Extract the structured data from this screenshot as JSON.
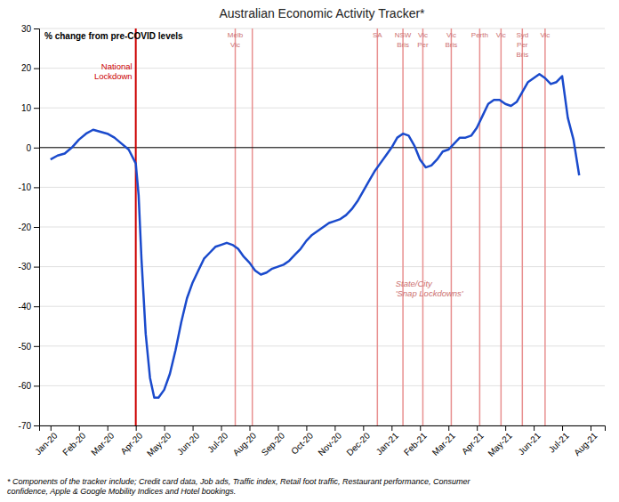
{
  "chart_data": {
    "type": "line",
    "title": "Australian Economic Activity Tracker*",
    "ylabel": "% change from pre-COVID levels",
    "footnote": "* Components of the tracker include; Credit card data, Job ads, Traffic index, Retail foot traffic, Restaurant performance, Consumer\nconfidence, Apple & Google Mobility Indices and Hotel bookings.",
    "x": [
      0.0,
      0.25,
      0.5,
      0.75,
      1.0,
      1.25,
      1.5,
      1.75,
      2.0,
      2.25,
      2.5,
      2.75,
      3.0,
      3.1,
      3.2,
      3.35,
      3.5,
      3.65,
      3.8,
      4.0,
      4.2,
      4.4,
      4.6,
      4.8,
      5.0,
      5.2,
      5.4,
      5.6,
      5.8,
      6.0,
      6.2,
      6.4,
      6.6,
      6.8,
      7.0,
      7.2,
      7.4,
      7.6,
      7.8,
      8.0,
      8.2,
      8.4,
      8.6,
      8.8,
      9.0,
      9.2,
      9.4,
      9.6,
      9.8,
      10.0,
      10.2,
      10.4,
      10.6,
      10.8,
      11.0,
      11.2,
      11.4,
      11.6,
      11.8,
      12.0,
      12.2,
      12.4,
      12.6,
      12.8,
      13.0,
      13.2,
      13.4,
      13.6,
      13.8,
      14.0,
      14.2,
      14.4,
      14.6,
      14.8,
      15.0,
      15.2,
      15.4,
      15.6,
      15.8,
      16.0,
      16.2,
      16.4,
      16.6,
      16.8,
      17.0,
      17.2,
      17.4,
      17.6,
      17.8,
      18.0,
      18.2,
      18.4,
      18.6
    ],
    "values": [
      -3.0,
      -2.0,
      -1.5,
      0.0,
      2.0,
      3.5,
      4.5,
      4.0,
      3.5,
      2.5,
      1.0,
      -0.5,
      -4.0,
      -12.0,
      -28.0,
      -47.0,
      -58.0,
      -63.0,
      -63.0,
      -61.0,
      -57.0,
      -51.0,
      -44.0,
      -38.0,
      -34.0,
      -31.0,
      -28.0,
      -26.5,
      -25.0,
      -24.5,
      -24.0,
      -24.5,
      -25.5,
      -27.5,
      -29.0,
      -31.0,
      -32.0,
      -31.5,
      -30.5,
      -30.0,
      -29.5,
      -28.5,
      -27.0,
      -25.5,
      -23.5,
      -22.0,
      -21.0,
      -20.0,
      -19.0,
      -18.5,
      -18.0,
      -17.0,
      -15.5,
      -13.5,
      -11.0,
      -8.5,
      -6.0,
      -4.0,
      -2.0,
      0.0,
      2.5,
      3.5,
      3.0,
      0.5,
      -3.0,
      -5.0,
      -4.5,
      -3.0,
      -1.0,
      -0.5,
      1.0,
      2.5,
      2.5,
      3.0,
      5.0,
      8.0,
      11.0,
      12.0,
      12.0,
      11.0,
      10.5,
      11.5,
      14.0,
      16.5,
      17.5,
      18.5,
      17.5,
      16.0,
      16.5,
      18.0,
      7.5,
      2.0,
      -7.0
    ],
    "color": "#1a4acc",
    "xlim": [
      -0.4,
      19.5
    ],
    "xticks": [
      {
        "value": 0,
        "label": "Jan-20"
      },
      {
        "value": 1,
        "label": "Feb-20"
      },
      {
        "value": 2,
        "label": "Mar-20"
      },
      {
        "value": 3,
        "label": "Apr-20"
      },
      {
        "value": 4,
        "label": "May-20"
      },
      {
        "value": 5,
        "label": "Jun-20"
      },
      {
        "value": 6,
        "label": "Jul-20"
      },
      {
        "value": 7,
        "label": "Aug-20"
      },
      {
        "value": 8,
        "label": "Sep-20"
      },
      {
        "value": 9,
        "label": "Oct-20"
      },
      {
        "value": 10,
        "label": "Nov-20"
      },
      {
        "value": 11,
        "label": "Dec-20"
      },
      {
        "value": 12,
        "label": "Jan-21"
      },
      {
        "value": 13,
        "label": "Feb-21"
      },
      {
        "value": 14,
        "label": "Mar-21"
      },
      {
        "value": 15,
        "label": "Apr-21"
      },
      {
        "value": 16,
        "label": "May-21"
      },
      {
        "value": 17,
        "label": "Jun-21"
      },
      {
        "value": 18,
        "label": "Jul-21"
      },
      {
        "value": 19,
        "label": "Aug-21"
      }
    ],
    "ylim": [
      -70,
      30
    ],
    "yticks": [
      -70,
      -60,
      -50,
      -40,
      -30,
      -20,
      -10,
      0,
      10,
      20,
      30
    ],
    "grid": true,
    "hline": 0,
    "national_lockdown": {
      "x": 3.0,
      "label": "National\nLockdown",
      "color": "#cc0000"
    },
    "snap_lockdowns": {
      "label": "State/City\n'Snap Lockdowns'",
      "color": "#e89090",
      "label_color": "#cc7070",
      "events": [
        {
          "x": 6.5,
          "labels": [
            "Melb",
            "Vic"
          ]
        },
        {
          "x": 7.1,
          "labels": []
        },
        {
          "x": 11.5,
          "labels": [
            "SA"
          ]
        },
        {
          "x": 12.4,
          "labels": [
            "NSW",
            "Bris"
          ]
        },
        {
          "x": 13.1,
          "labels": [
            "Vic",
            "Per"
          ]
        },
        {
          "x": 14.1,
          "labels": [
            "Vic",
            "Bris"
          ]
        },
        {
          "x": 15.1,
          "labels": [
            "Perth"
          ]
        },
        {
          "x": 15.85,
          "labels": [
            "Vic"
          ]
        },
        {
          "x": 16.6,
          "labels": [
            "Syd",
            "Per",
            "Bris"
          ]
        },
        {
          "x": 17.4,
          "labels": [
            "Vic"
          ]
        }
      ]
    }
  }
}
